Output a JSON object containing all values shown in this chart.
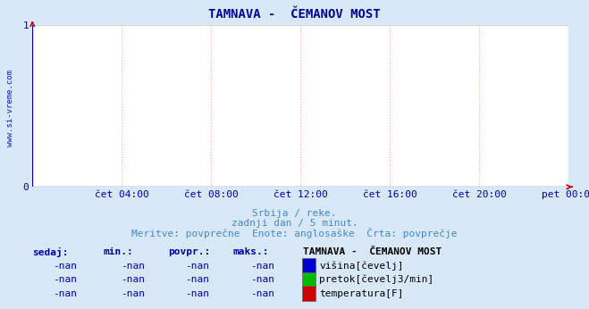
{
  "title": "TAMNAVA -  ČEMANOV MOST",
  "title_color": "#000099",
  "title_fontsize": 10,
  "bg_color": "#d8e8f8",
  "plot_bg_color": "#ffffff",
  "axis_label_color": "#0000aa",
  "grid_color_h": "#c8c8c8",
  "grid_color_v": "#ffaaaa",
  "ylim": [
    0,
    1
  ],
  "yticks": [
    0,
    1
  ],
  "xtick_labels": [
    "",
    "čet 04:00",
    "čet 08:00",
    "čet 12:00",
    "čet 16:00",
    "čet 20:00",
    "pet 00:00"
  ],
  "subtitle1": "Srbija / reke.",
  "subtitle2": "zadnji dan / 5 minut.",
  "subtitle3": "Meritve: povprečne  Enote: anglosaške  Črta: povprečje",
  "subtitle_color": "#4488cc",
  "subtitle_fontsize": 8,
  "watermark": "www.si-vreme.com",
  "watermark_color": "#0000aa",
  "legend_title": "TAMNAVA -  ČEMANOV MOST",
  "legend_items": [
    {
      "label": "višina[čevelj]",
      "color": "#0000cc"
    },
    {
      "label": "pretok[čevelj3/min]",
      "color": "#00bb00"
    },
    {
      "label": "temperatura[F]",
      "color": "#cc0000"
    }
  ],
  "table_headers": [
    "sedaj:",
    "min.:",
    "povpr.:",
    "maks.:"
  ],
  "table_values": [
    "-nan",
    "-nan",
    "-nan",
    "-nan"
  ],
  "table_color": "#0000aa",
  "figsize": [
    6.59,
    3.46
  ],
  "dpi": 100
}
